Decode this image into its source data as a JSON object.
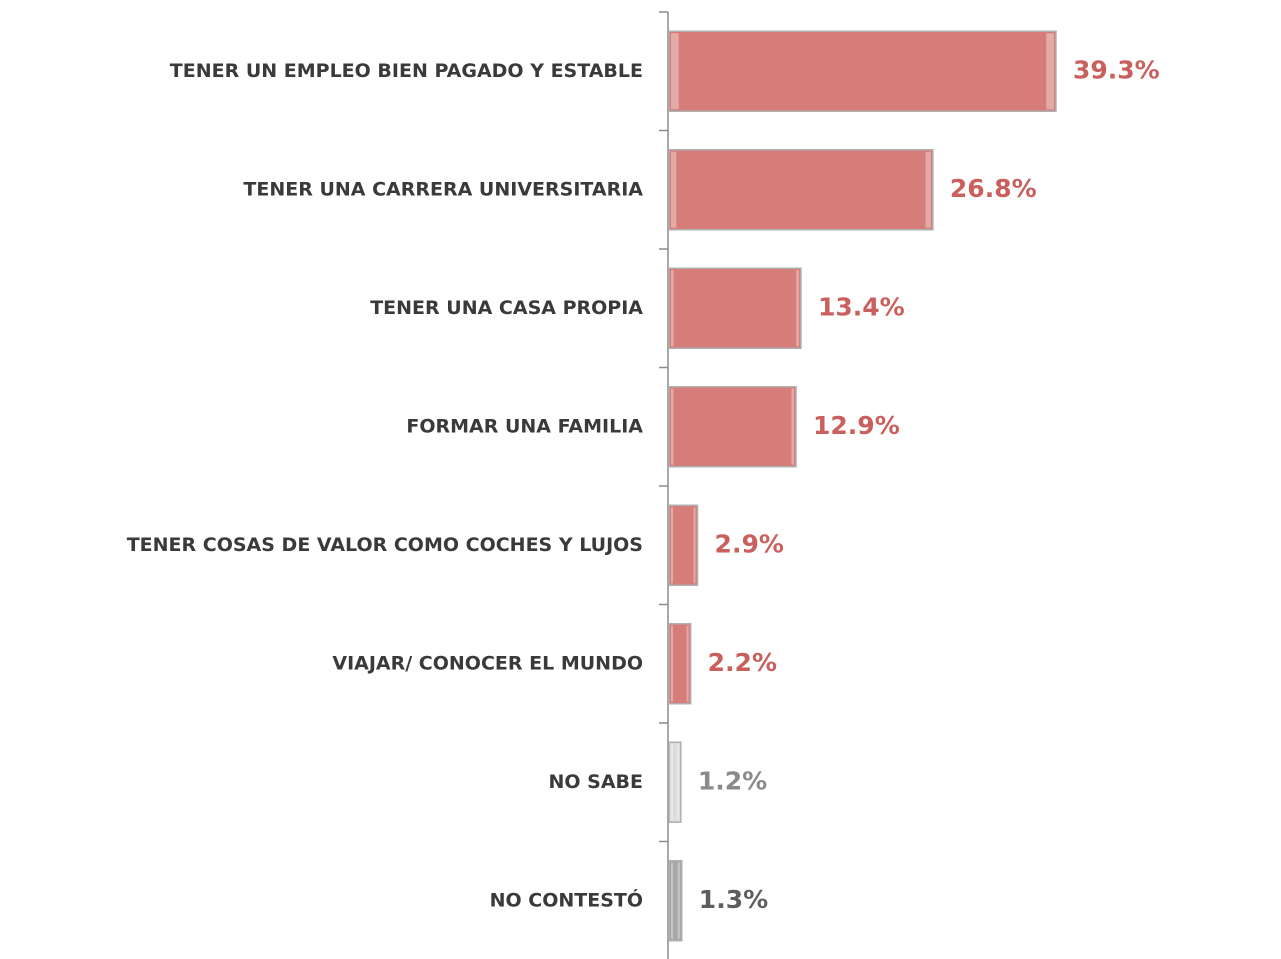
{
  "chart_data": {
    "type": "hbar",
    "categories": [
      "TENER UN EMPLEO BIEN PAGADO Y ESTABLE",
      "TENER UNA CARRERA UNIVERSITARIA",
      "TENER UNA CASA PROPIA",
      "FORMAR UNA FAMILIA",
      "TENER COSAS DE VALOR COMO COCHES Y LUJOS",
      "VIAJAR/ CONOCER EL MUNDO",
      "NO SABE",
      "NO CONTESTÓ"
    ],
    "values": [
      39.3,
      26.8,
      13.4,
      12.9,
      2.9,
      2.2,
      1.2,
      1.3
    ],
    "value_labels": [
      "39.3%",
      "26.8%",
      "13.4%",
      "12.9%",
      "2.9%",
      "2.2%",
      "1.2%",
      "1.3%"
    ],
    "colors": [
      "#d67d7a",
      "#d67d7a",
      "#d67d7a",
      "#d67d7a",
      "#d67d7a",
      "#d67d7a",
      "#dcdcdc",
      "#a8a8a8"
    ],
    "label_colors": [
      "#c9605d",
      "#c9605d",
      "#c9605d",
      "#c9605d",
      "#c9605d",
      "#c9605d",
      "#8a8a8a",
      "#5e5e5e"
    ]
  }
}
